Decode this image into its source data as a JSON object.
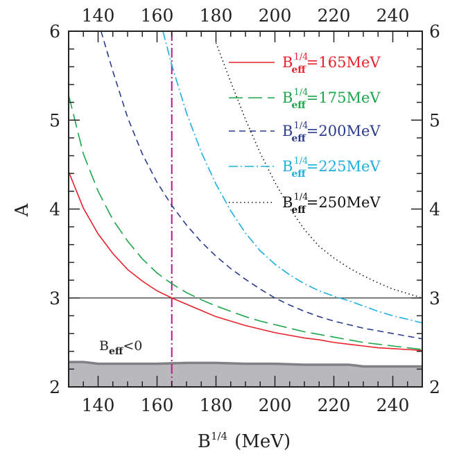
{
  "chart_data": {
    "type": "line",
    "xlabel": "B^1/4 (MeV)",
    "xlabel_main": "B",
    "xlabel_sup": "1/4",
    "xlabel_unit": "(MeV)",
    "ylabel": "A",
    "xlim": [
      130,
      250
    ],
    "ylim": [
      2,
      6
    ],
    "x_ticks": [
      140,
      160,
      180,
      200,
      220,
      240
    ],
    "y_ticks": [
      2,
      3,
      4,
      5,
      6
    ],
    "grid": false,
    "legend_position": "top-right",
    "series": [
      {
        "name": "B_eff^1/4=165MeV",
        "label_sup": "1/4",
        "label_value": "=165MeV",
        "color": "#e8202a",
        "dash": "solid",
        "x": [
          130,
          135,
          140,
          145,
          150,
          155,
          160,
          165,
          170,
          175,
          180,
          185,
          190,
          195,
          200,
          205,
          210,
          215,
          220,
          225,
          230,
          235,
          240,
          245,
          250
        ],
        "y": [
          4.42,
          4.01,
          3.72,
          3.5,
          3.32,
          3.19,
          3.08,
          3.0,
          2.93,
          2.86,
          2.79,
          2.74,
          2.69,
          2.65,
          2.61,
          2.58,
          2.55,
          2.53,
          2.5,
          2.48,
          2.46,
          2.44,
          2.43,
          2.42,
          2.41
        ]
      },
      {
        "name": "B_eff^1/4=175MeV",
        "label_sup": "1/4",
        "label_value": "=175MeV",
        "color": "#1aa64a",
        "dash": "long-dash",
        "x": [
          130,
          135,
          140,
          145,
          150,
          155,
          160,
          165,
          170,
          175,
          180,
          185,
          190,
          195,
          200,
          205,
          210,
          215,
          220,
          225,
          230,
          235,
          240,
          245,
          250
        ],
        "y": [
          5.28,
          4.62,
          4.2,
          3.88,
          3.64,
          3.44,
          3.28,
          3.16,
          3.06,
          2.98,
          2.91,
          2.85,
          2.79,
          2.74,
          2.7,
          2.66,
          2.62,
          2.59,
          2.56,
          2.53,
          2.5,
          2.48,
          2.46,
          2.44,
          2.42
        ]
      },
      {
        "name": "B_eff^1/4=200MeV",
        "label_sup": "1/4",
        "label_value": "=200MeV",
        "color": "#2a3a8c",
        "dash": "dash",
        "x": [
          141,
          145,
          150,
          155,
          160,
          165,
          170,
          175,
          180,
          185,
          190,
          195,
          200,
          205,
          210,
          215,
          220,
          225,
          230,
          235,
          240,
          245,
          250
        ],
        "y": [
          6.0,
          5.55,
          5.03,
          4.62,
          4.3,
          4.04,
          3.82,
          3.63,
          3.47,
          3.33,
          3.21,
          3.1,
          3.0,
          2.92,
          2.85,
          2.79,
          2.74,
          2.7,
          2.66,
          2.63,
          2.6,
          2.57,
          2.54
        ]
      },
      {
        "name": "B_eff^1/4=225MeV",
        "label_sup": "1/4",
        "label_value": "=225MeV",
        "color": "#1eaee0",
        "dash": "dash-dot",
        "x": [
          162,
          165,
          170,
          175,
          180,
          185,
          190,
          195,
          200,
          205,
          210,
          215,
          220,
          225,
          230,
          235,
          240,
          245,
          250
        ],
        "y": [
          6.0,
          5.62,
          5.08,
          4.64,
          4.28,
          3.98,
          3.73,
          3.53,
          3.38,
          3.26,
          3.16,
          3.08,
          3.02,
          2.97,
          2.91,
          2.85,
          2.8,
          2.76,
          2.72
        ]
      },
      {
        "name": "B_eff^1/4=250MeV",
        "label_sup": "1/4",
        "label_value": "=250MeV",
        "color": "#111111",
        "dash": "dot",
        "x": [
          180,
          185,
          190,
          195,
          200,
          205,
          210,
          215,
          220,
          225,
          230,
          235,
          240,
          245,
          250
        ],
        "y": [
          5.87,
          5.43,
          5.01,
          4.63,
          4.3,
          4.01,
          3.77,
          3.58,
          3.45,
          3.34,
          3.25,
          3.17,
          3.1,
          3.05,
          3.0
        ]
      }
    ],
    "reference_lines": {
      "horizontal_y": 3,
      "horizontal_color": "#333333",
      "vertical_x": 165,
      "vertical_color": "#c0148c"
    },
    "excluded_region": {
      "label_main": "B",
      "label_sub": "eff",
      "label_rest": "<0",
      "fill_color": "#b9b9bd",
      "edge_color": "#808085",
      "x": [
        130,
        135,
        140,
        150,
        160,
        170,
        180,
        190,
        200,
        210,
        220,
        225,
        230,
        240,
        250
      ],
      "y": [
        2.28,
        2.28,
        2.26,
        2.26,
        2.26,
        2.27,
        2.27,
        2.26,
        2.26,
        2.25,
        2.25,
        2.25,
        2.23,
        2.23,
        2.23
      ]
    },
    "legend_sub": "eff",
    "legend_main": "B"
  }
}
